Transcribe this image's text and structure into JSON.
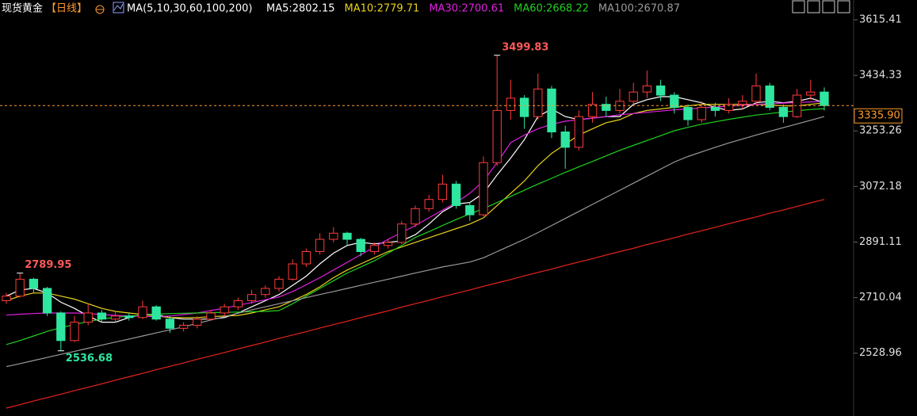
{
  "chart_data": {
    "type": "candlestick",
    "symbol": "现货黄金",
    "period": "【日线】",
    "indicator": "MA(5,10,30,60,100,200)",
    "ylim": [
      2350,
      3680
    ],
    "yticks": [
      3615.41,
      3434.33,
      3253.26,
      3072.18,
      2891.11,
      2710.04,
      2528.96
    ],
    "grid": false,
    "up_color": "#ff3b3b",
    "down_color": "#2ee6a0",
    "last_price": {
      "value": 3335.9,
      "label": "3335.90"
    },
    "open": [
      2700,
      2715,
      2770,
      2740,
      2660,
      2570,
      2630,
      2660,
      2640,
      2650,
      2645,
      2680,
      2640,
      2610,
      2620,
      2640,
      2660,
      2680,
      2700,
      2720,
      2740,
      2770,
      2820,
      2860,
      2900,
      2920,
      2900,
      2860,
      2880,
      2890,
      2950,
      3000,
      3030,
      3080,
      3010,
      2980,
      3150,
      3320,
      3360,
      3300,
      3390,
      3250,
      3200,
      3300,
      3340,
      3320,
      3350,
      3380,
      3400,
      3370,
      3330,
      3290,
      3330,
      3320,
      3340,
      3350,
      3400,
      3330,
      3300,
      3370,
      3380
    ],
    "high": [
      2725,
      2789.95,
      2775,
      2745,
      2665,
      2650,
      2690,
      2670,
      2665,
      2660,
      2700,
      2685,
      2650,
      2630,
      2650,
      2670,
      2690,
      2710,
      2735,
      2750,
      2780,
      2835,
      2870,
      2920,
      2940,
      2925,
      2905,
      2890,
      2900,
      2960,
      3010,
      3045,
      3110,
      3090,
      3020,
      3170,
      3499.83,
      3420,
      3370,
      3440,
      3400,
      3270,
      3320,
      3380,
      3365,
      3390,
      3410,
      3450,
      3420,
      3380,
      3340,
      3350,
      3345,
      3360,
      3370,
      3440,
      3410,
      3340,
      3390,
      3420,
      3395
    ],
    "low": [
      2690,
      2710,
      2725,
      2650,
      2536.68,
      2565,
      2620,
      2630,
      2630,
      2635,
      2640,
      2635,
      2595,
      2600,
      2610,
      2635,
      2650,
      2670,
      2690,
      2710,
      2730,
      2765,
      2810,
      2850,
      2890,
      2880,
      2845,
      2850,
      2870,
      2885,
      2940,
      2990,
      3020,
      3000,
      2960,
      2975,
      3140,
      3290,
      3260,
      3290,
      3230,
      3130,
      3190,
      3280,
      3300,
      3310,
      3340,
      3360,
      3350,
      3310,
      3270,
      3280,
      3300,
      3310,
      3325,
      3340,
      3320,
      3280,
      3295,
      3355,
      3320
    ],
    "close": [
      2715,
      2770,
      2740,
      2660,
      2570,
      2630,
      2660,
      2640,
      2650,
      2645,
      2680,
      2640,
      2610,
      2620,
      2640,
      2660,
      2680,
      2700,
      2720,
      2740,
      2770,
      2820,
      2860,
      2900,
      2920,
      2900,
      2860,
      2880,
      2890,
      2950,
      3000,
      3030,
      3080,
      3010,
      2980,
      3150,
      3320,
      3360,
      3300,
      3390,
      3250,
      3200,
      3300,
      3340,
      3320,
      3350,
      3380,
      3400,
      3370,
      3330,
      3290,
      3330,
      3320,
      3340,
      3350,
      3400,
      3330,
      3300,
      3370,
      3380,
      3335.9
    ],
    "series": [
      {
        "name": "MA5:2802.15",
        "color": "#ffffff",
        "values": [
          2715,
          2735,
          2740,
          2725,
          2695,
          2675,
          2650,
          2630,
          2630,
          2645,
          2655,
          2655,
          2645,
          2640,
          2640,
          2640,
          2645,
          2660,
          2680,
          2700,
          2720,
          2750,
          2780,
          2820,
          2855,
          2880,
          2890,
          2885,
          2890,
          2895,
          2915,
          2950,
          2990,
          3015,
          3020,
          3050,
          3110,
          3165,
          3225,
          3300,
          3325,
          3300,
          3290,
          3295,
          3300,
          3300,
          3340,
          3355,
          3365,
          3365,
          3355,
          3345,
          3330,
          3320,
          3325,
          3345,
          3350,
          3345,
          3350,
          3360,
          3345
        ]
      },
      {
        "name": "MA10:2779.71",
        "color": "#e8d21c",
        "values": [
          2700,
          2715,
          2725,
          2725,
          2715,
          2705,
          2690,
          2675,
          2665,
          2660,
          2655,
          2650,
          2645,
          2645,
          2645,
          2648,
          2650,
          2652,
          2660,
          2670,
          2680,
          2700,
          2720,
          2745,
          2775,
          2800,
          2820,
          2840,
          2860,
          2875,
          2890,
          2905,
          2920,
          2935,
          2950,
          2970,
          3010,
          3050,
          3090,
          3140,
          3180,
          3210,
          3240,
          3260,
          3280,
          3290,
          3310,
          3320,
          3325,
          3330,
          3335,
          3340,
          3340,
          3340,
          3340,
          3340,
          3338,
          3335,
          3335,
          3340,
          3345
        ]
      },
      {
        "name": "MA30:2700.61",
        "color": "#e020e0",
        "values": [
          2653,
          2656,
          2658,
          2660,
          2660,
          2660,
          2658,
          2655,
          2652,
          2650,
          2649,
          2648,
          2650,
          2655,
          2660,
          2668,
          2676,
          2685,
          2694,
          2703,
          2712,
          2730,
          2752,
          2775,
          2800,
          2825,
          2850,
          2875,
          2900,
          2922,
          2945,
          2970,
          2995,
          3020,
          3050,
          3090,
          3150,
          3215,
          3240,
          3260,
          3275,
          3285,
          3290,
          3295,
          3300,
          3306,
          3310,
          3314,
          3318,
          3322,
          3325,
          3328,
          3331,
          3334,
          3337,
          3340,
          3342,
          3344,
          3346,
          3348,
          3350
        ]
      },
      {
        "name": "MA60:2668.22",
        "color": "#1fd11f",
        "values": [
          2557,
          2570,
          2585,
          2600,
          2612,
          2622,
          2632,
          2640,
          2646,
          2650,
          2653,
          2656,
          2658,
          2659,
          2660,
          2661,
          2662,
          2663,
          2664,
          2665,
          2668,
          2690,
          2715,
          2740,
          2765,
          2790,
          2810,
          2830,
          2855,
          2880,
          2906,
          2925,
          2945,
          2965,
          2983,
          3000,
          3020,
          3040,
          3060,
          3080,
          3099,
          3118,
          3136,
          3154,
          3172,
          3190,
          3206,
          3222,
          3238,
          3254,
          3265,
          3275,
          3283,
          3291,
          3298,
          3305,
          3310,
          3315,
          3319,
          3323,
          3326
        ]
      },
      {
        "name": "MA100:2670.87",
        "color": "#9a9a9a",
        "values": [
          2485,
          2495,
          2505,
          2515,
          2525,
          2535,
          2545,
          2555,
          2565,
          2575,
          2585,
          2595,
          2605,
          2615,
          2626,
          2637,
          2648,
          2659,
          2670,
          2680,
          2690,
          2700,
          2710,
          2720,
          2730,
          2740,
          2750,
          2760,
          2770,
          2780,
          2790,
          2800,
          2810,
          2818,
          2826,
          2840,
          2860,
          2880,
          2900,
          2922,
          2945,
          2968,
          2991,
          3014,
          3037,
          3060,
          3083,
          3106,
          3129,
          3152,
          3170,
          3185,
          3200,
          3214,
          3227,
          3240,
          3252,
          3264,
          3276,
          3288,
          3300
        ]
      },
      {
        "color": "#e8231c",
        "values": [
          2350,
          2361,
          2373,
          2384,
          2395,
          2407,
          2418,
          2429,
          2441,
          2452,
          2463,
          2475,
          2486,
          2497,
          2509,
          2520,
          2531,
          2543,
          2554,
          2565,
          2577,
          2588,
          2599,
          2611,
          2622,
          2633,
          2645,
          2656,
          2667,
          2679,
          2690,
          2701,
          2713,
          2724,
          2735,
          2747,
          2758,
          2769,
          2781,
          2792,
          2803,
          2815,
          2826,
          2837,
          2849,
          2860,
          2871,
          2883,
          2894,
          2905,
          2917,
          2928,
          2939,
          2951,
          2962,
          2973,
          2985,
          2996,
          3007,
          3019,
          3030
        ]
      }
    ]
  }
}
